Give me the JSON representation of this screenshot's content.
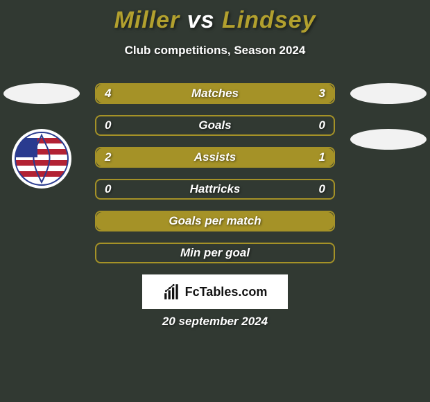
{
  "title": {
    "player_a": "Miller",
    "vs": "vs",
    "player_b": "Lindsey",
    "color_a": "#b2a02e",
    "color_vs": "#ffffff",
    "color_b": "#b2a02e"
  },
  "subtitle": "Club competitions, Season 2024",
  "colors": {
    "bg": "#313932",
    "bar_border": "#a59227",
    "fill_a": "#a59227",
    "fill_b": "#a59227",
    "text": "#ffffff"
  },
  "stats": [
    {
      "label": "Matches",
      "a": 4,
      "b": 3,
      "show_values": true
    },
    {
      "label": "Goals",
      "a": 0,
      "b": 0,
      "show_values": true
    },
    {
      "label": "Assists",
      "a": 2,
      "b": 1,
      "show_values": true
    },
    {
      "label": "Hattricks",
      "a": 0,
      "b": 0,
      "show_values": true
    },
    {
      "label": "Goals per match",
      "a": null,
      "b": null,
      "show_values": false,
      "full_fill": true
    },
    {
      "label": "Min per goal",
      "a": null,
      "b": null,
      "show_values": false,
      "full_fill": false
    }
  ],
  "brand": "FcTables.com",
  "date": "20 september 2024",
  "team_left": {
    "name": "New England Revolution",
    "flag_stripes": [
      "#b22234",
      "#ffffff",
      "#b22234",
      "#ffffff",
      "#b22234",
      "#ffffff",
      "#b22234"
    ],
    "canton_color": "#2a3b8f"
  }
}
